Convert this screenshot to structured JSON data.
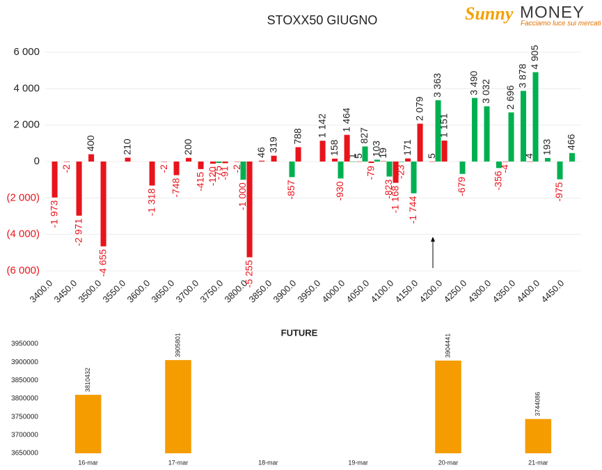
{
  "logo": {
    "brand": "Sunny",
    "name": "MONEY",
    "tagline": "Facciamo luce sui mercati"
  },
  "chart_data": [
    {
      "type": "bar",
      "title": "STOXX50 GIUGNO",
      "categories": [
        "3400.0",
        null,
        "3450.0",
        null,
        "3500.0",
        null,
        "3550.0",
        null,
        "3600.0",
        null,
        "3650.0",
        null,
        "3700.0",
        null,
        "3750.0",
        null,
        "3800.0",
        null,
        "3850.0",
        null,
        "3900.0",
        null,
        "3950.0",
        null,
        "4000.0",
        null,
        "4050.0",
        null,
        "4100.0",
        null,
        "4150.0",
        null,
        "4200.0",
        null,
        "4250.0",
        null,
        "4300.0",
        null,
        "4350.0",
        null,
        "4400.0",
        null,
        "4450.0",
        null
      ],
      "series": [
        {
          "color": "#00b050",
          "values": [
            null,
            null,
            null,
            null,
            null,
            null,
            null,
            null,
            null,
            null,
            null,
            null,
            null,
            null,
            -75,
            null,
            -1000,
            null,
            null,
            null,
            -857,
            null,
            null,
            null,
            -930,
            1,
            827,
            103,
            -823,
            -23,
            -1744,
            null,
            3363,
            null,
            -679,
            3490,
            3032,
            -356,
            2696,
            3878,
            4905,
            193,
            -975,
            466
          ],
          "value_labels": [
            null,
            null,
            null,
            null,
            null,
            null,
            null,
            null,
            null,
            null,
            null,
            null,
            null,
            null,
            "-75",
            null,
            "-1 000",
            null,
            null,
            null,
            "-857",
            null,
            null,
            null,
            "-930",
            "1",
            "827",
            "103",
            "-823",
            "-23",
            "-1 744",
            null,
            "3 363",
            null,
            "-679",
            "3 490",
            "3 032",
            "-356",
            "2 696",
            "3 878",
            "4 905",
            "193",
            "-975",
            "466"
          ]
        },
        {
          "color": "#e8141c",
          "values": [
            -1973,
            -2,
            -2971,
            400,
            -4655,
            null,
            210,
            null,
            -1318,
            -2,
            -748,
            200,
            -415,
            -120,
            -91,
            -2,
            -5255,
            46,
            319,
            null,
            788,
            null,
            1142,
            158,
            1464,
            5,
            -79,
            19,
            -1168,
            171,
            2079,
            5,
            1151,
            null,
            null,
            null,
            null,
            -4,
            null,
            4,
            null,
            null,
            null,
            null
          ],
          "value_labels": [
            "-1 973",
            "-2",
            "-2 971",
            "400",
            "-4 655",
            null,
            "210",
            null,
            "-1 318",
            "-2",
            "-748",
            "200",
            "-415",
            "-120",
            "-91",
            "-2",
            "-5 255",
            "46",
            "319",
            null,
            "788",
            null,
            "1 142",
            "158",
            "1 464",
            "5",
            "-79",
            "19",
            "-1 168",
            "171",
            "2 079",
            "5",
            "1 151",
            null,
            null,
            null,
            null,
            "-4",
            null,
            "4",
            null,
            null,
            null,
            null
          ]
        }
      ],
      "ylim": [
        -6000,
        6000
      ],
      "yticks": [
        {
          "value": -6000,
          "label": "(6 000)"
        },
        {
          "value": -4000,
          "label": "(4 000)"
        },
        {
          "value": -2000,
          "label": "(2 000)"
        },
        0,
        {
          "value": 2000,
          "label": "2 000"
        },
        {
          "value": 4000,
          "label": "4 000"
        },
        {
          "value": 6000,
          "label": "6 000"
        }
      ],
      "grid": true
    },
    {
      "type": "bar",
      "title": "FUTURE",
      "categories": [
        "16-mar",
        "17-mar",
        "18-mar",
        "19-mar",
        "20-mar",
        "21-mar"
      ],
      "values": [
        3810432,
        3905801,
        null,
        null,
        3904441,
        3744086
      ],
      "color": "#f59c00",
      "ylim": [
        3650000,
        3950000
      ],
      "yticks": [
        3650000,
        3700000,
        3750000,
        3800000,
        3850000,
        3900000,
        3950000
      ],
      "grid": false
    }
  ]
}
